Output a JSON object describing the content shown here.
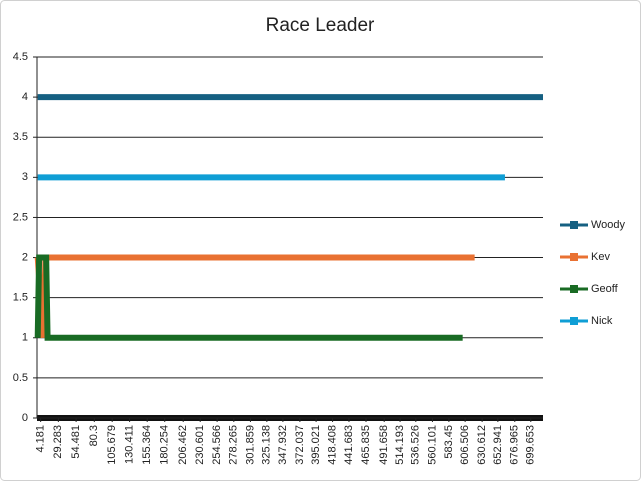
{
  "chart_data": {
    "type": "line",
    "title": "Race Leader",
    "xlim": [
      -1,
      717
    ],
    "xticks": [
      4.181,
      29.283,
      54.481,
      80.3,
      105.679,
      130.411,
      155.364,
      180.254,
      206.462,
      230.601,
      254.566,
      278.265,
      301.859,
      325.138,
      347.932,
      372.037,
      395.021,
      418.408,
      441.683,
      465.835,
      491.658,
      514.193,
      536.526,
      560.101,
      583.45,
      606.506,
      630.612,
      652.941,
      676.965,
      699.653
    ],
    "ylim": [
      0,
      4.5
    ],
    "yticks": [
      0,
      0.5,
      1,
      1.5,
      2,
      2.5,
      3,
      3.5,
      4,
      4.5
    ],
    "grid": true,
    "legend": "right",
    "series": [
      {
        "name": "Woody",
        "color": "#156082",
        "x": [
          0,
          717
        ],
        "values": [
          4,
          4
        ]
      },
      {
        "name": "Kev",
        "color": "#e97132",
        "x": [
          0,
          8,
          11,
          620
        ],
        "values": [
          2,
          1,
          2,
          2
        ]
      },
      {
        "name": "Geoff",
        "color": "#196b24",
        "x": [
          0,
          2,
          12,
          14,
          603
        ],
        "values": [
          1,
          2,
          2,
          1,
          1
        ]
      },
      {
        "name": "Nick",
        "color": "#0f9ed5",
        "x": [
          0,
          663
        ],
        "values": [
          3,
          3
        ]
      }
    ]
  }
}
